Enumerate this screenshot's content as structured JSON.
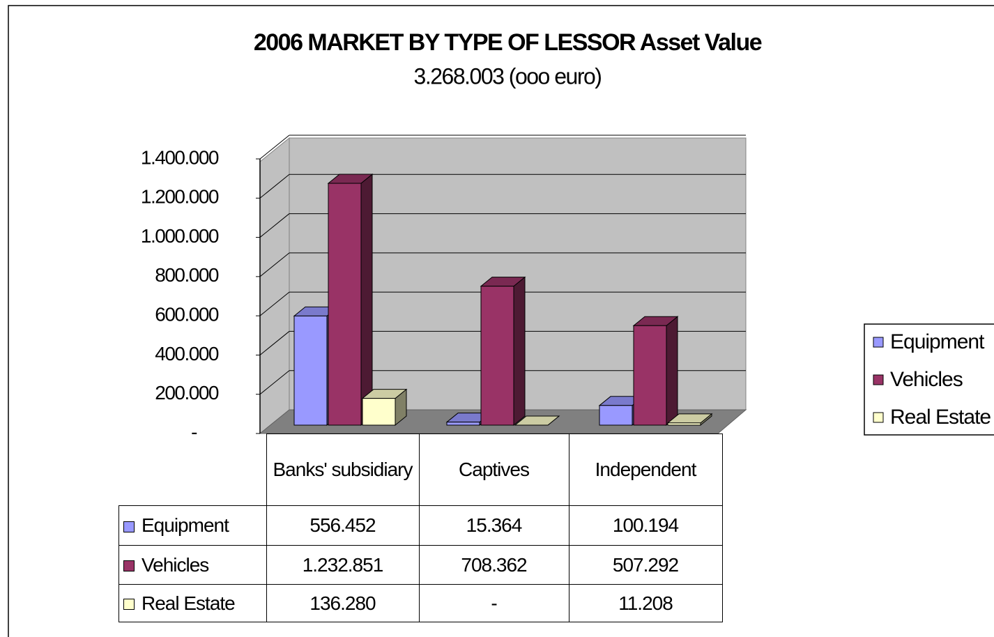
{
  "chart_data": {
    "type": "bar3d",
    "title": "2006 MARKET BY TYPE OF LESSOR Asset Value",
    "subtitle": "3.268.003 (ooo euro)",
    "categories": [
      "Banks' subsidiary",
      "Captives",
      "Independent"
    ],
    "series": [
      {
        "name": "Equipment",
        "color": "#9999ff",
        "values": [
          556452,
          15364,
          100194
        ],
        "value_labels": [
          "556.452",
          "15.364",
          "100.194"
        ]
      },
      {
        "name": "Vehicles",
        "color": "#993366",
        "values": [
          1232851,
          708362,
          507292
        ],
        "value_labels": [
          "1.232.851",
          "708.362",
          "507.292"
        ]
      },
      {
        "name": "Real Estate",
        "color": "#ffffcc",
        "values": [
          136280,
          0,
          11208
        ],
        "value_labels": [
          "136.280",
          "-",
          "11.208"
        ]
      }
    ],
    "ylim": [
      0,
      1400000
    ],
    "yticks": [
      {
        "value": 0,
        "label": "-"
      },
      {
        "value": 200000,
        "label": "200.000"
      },
      {
        "value": 400000,
        "label": "400.000"
      },
      {
        "value": 600000,
        "label": "600.000"
      },
      {
        "value": 800000,
        "label": "800.000"
      },
      {
        "value": 1000000,
        "label": "1.000.000"
      },
      {
        "value": 1200000,
        "label": "1.200.000"
      },
      {
        "value": 1400000,
        "label": "1.400.000"
      }
    ],
    "grid": true,
    "legend": "right",
    "data_table": true
  }
}
